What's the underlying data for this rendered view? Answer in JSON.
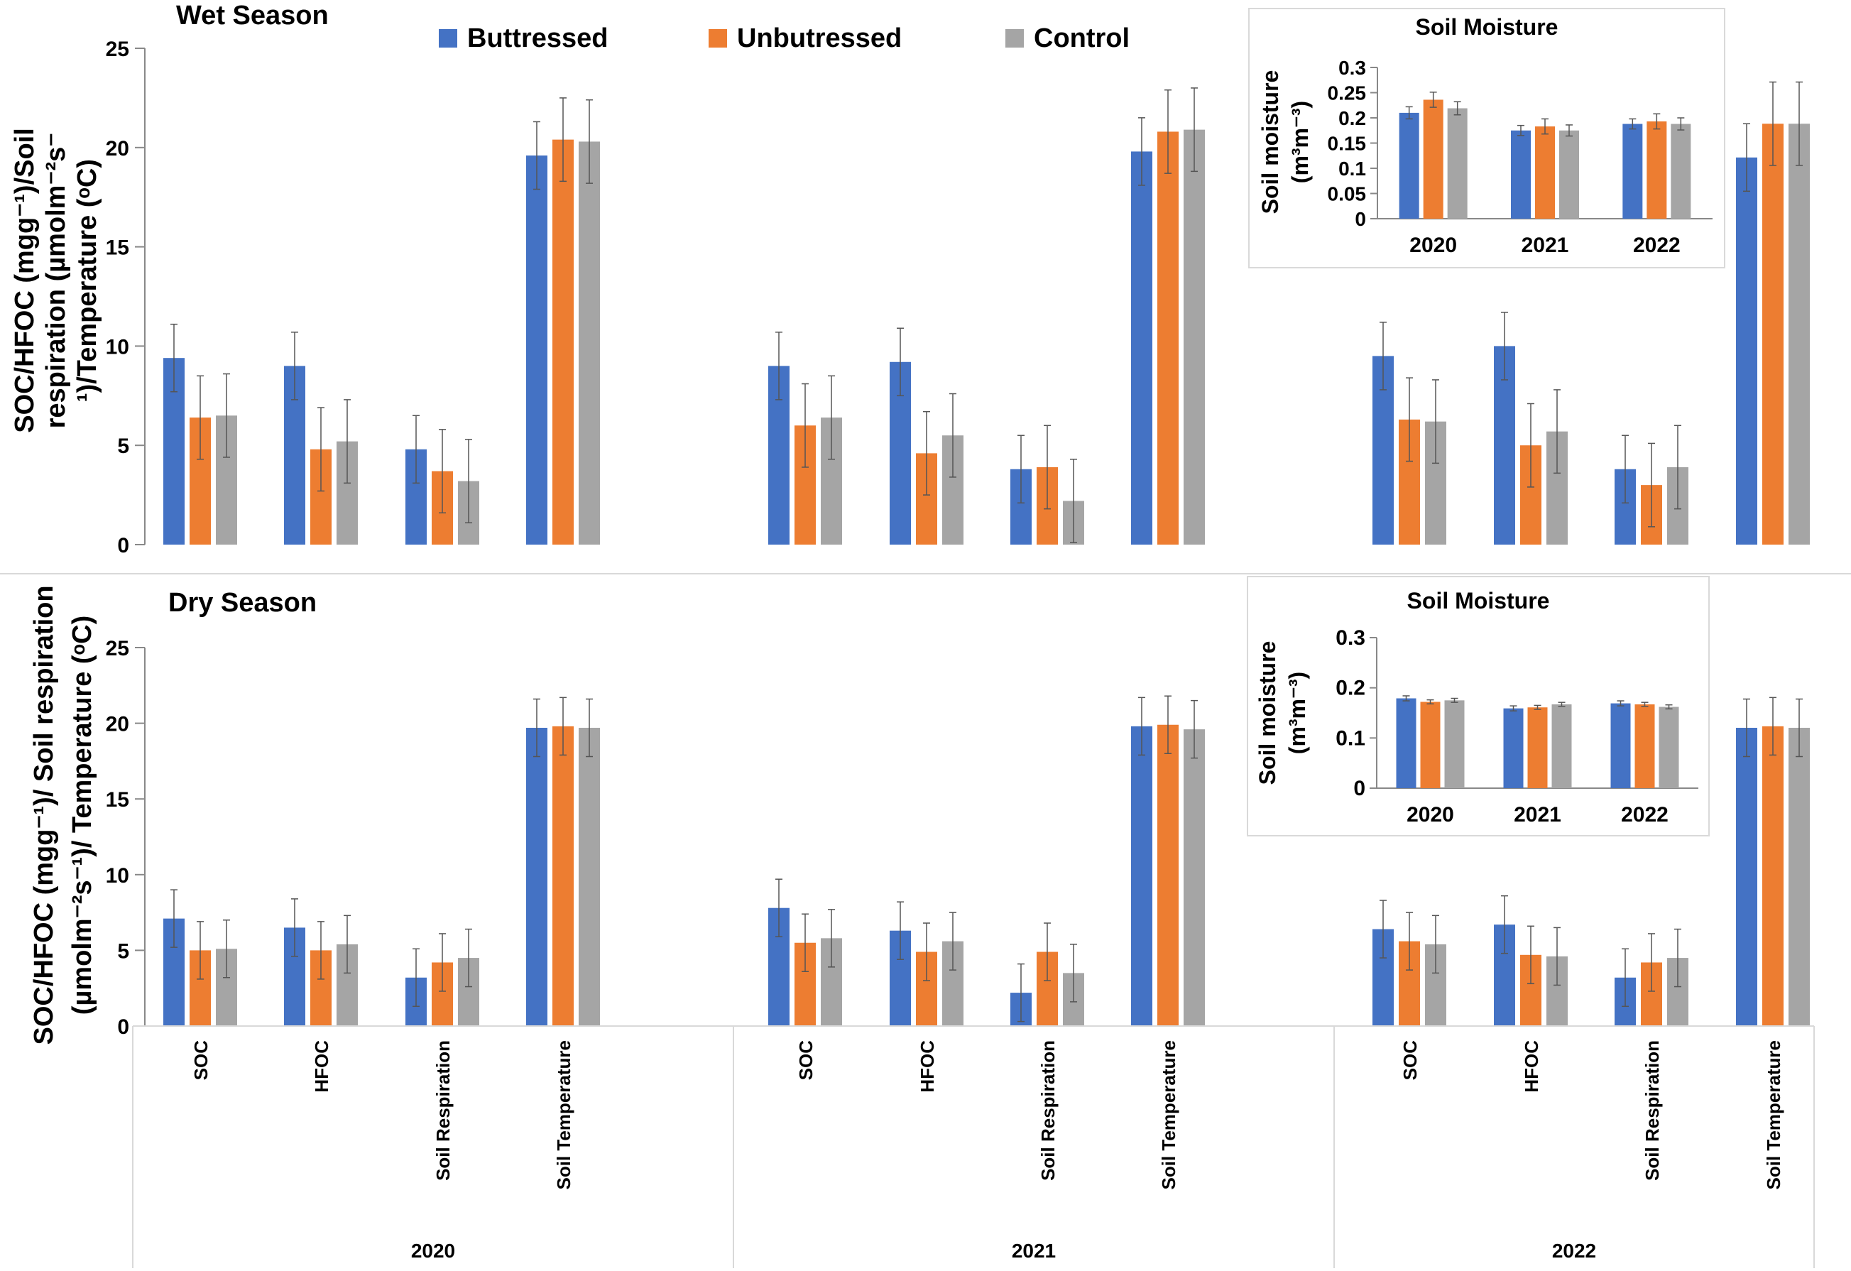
{
  "figure": {
    "legend": [
      {
        "name": "Buttressed",
        "color": "#4472C4"
      },
      {
        "name": "Unbutressed",
        "color": "#ED7D31"
      },
      {
        "name": "Control",
        "color": "#A5A5A5"
      }
    ],
    "group_years": [
      "2020",
      "2021",
      "2022"
    ],
    "categories": [
      "SOC",
      "HFOC",
      "Soil Respiration",
      "Soil Temperature"
    ]
  },
  "chart_data": [
    {
      "id": "wet",
      "type": "bar",
      "title": "Wet Season",
      "ylabel_lines": [
        "SOC/HFOC (mgg⁻¹)/Soil",
        "respiration (µmolm⁻²s⁻",
        "¹)/Temperature (ᵒC)"
      ],
      "ylim": [
        0,
        25
      ],
      "yticks": [
        0,
        5,
        10,
        15,
        20,
        25
      ],
      "groups": [
        "2020",
        "2021",
        "2022"
      ],
      "categories": [
        "SOC",
        "HFOC",
        "Soil Respiration",
        "Soil Temperature"
      ],
      "series": [
        {
          "name": "Buttressed",
          "values": [
            [
              9.4,
              9.0,
              4.8,
              19.6
            ],
            [
              9.0,
              9.2,
              3.8,
              19.8
            ],
            [
              9.5,
              10.0,
              3.8,
              19.5
            ]
          ],
          "errors": [
            [
              1.7,
              1.7,
              1.7,
              1.7
            ],
            [
              1.7,
              1.7,
              1.7,
              1.7
            ],
            [
              1.7,
              1.7,
              1.7,
              1.7
            ]
          ]
        },
        {
          "name": "Unbutressed",
          "values": [
            [
              6.4,
              4.8,
              3.7,
              20.4
            ],
            [
              6.0,
              4.6,
              3.9,
              20.8
            ],
            [
              6.3,
              5.0,
              3.0,
              21.2
            ]
          ],
          "errors": [
            [
              2.1,
              2.1,
              2.1,
              2.1
            ],
            [
              2.1,
              2.1,
              2.1,
              2.1
            ],
            [
              2.1,
              2.1,
              2.1,
              2.1
            ]
          ]
        },
        {
          "name": "Control",
          "values": [
            [
              6.5,
              5.2,
              3.2,
              20.3
            ],
            [
              6.4,
              5.5,
              2.2,
              20.9
            ],
            [
              6.2,
              5.7,
              3.9,
              21.2
            ]
          ],
          "errors": [
            [
              2.1,
              2.1,
              2.1,
              2.1
            ],
            [
              2.1,
              2.1,
              2.1,
              2.1
            ],
            [
              2.1,
              2.1,
              2.1,
              2.1
            ]
          ]
        }
      ],
      "inset": {
        "title": "Soil Moisture",
        "ylabel_lines": [
          "Soil moisture",
          "(m³m⁻³)"
        ],
        "ylim": [
          0,
          0.3
        ],
        "yticks": [
          0,
          0.05,
          0.1,
          0.15,
          0.2,
          0.25,
          0.3
        ],
        "ytick_labels": [
          "0",
          "0.05",
          "0.1",
          "0.15",
          "0.2",
          "0.25",
          "0.3"
        ],
        "categories": [
          "2020",
          "2021",
          "2022"
        ],
        "series": [
          {
            "name": "Buttressed",
            "values": [
              0.21,
              0.175,
              0.188
            ],
            "errors": [
              0.012,
              0.01,
              0.01
            ]
          },
          {
            "name": "Unbutressed",
            "values": [
              0.236,
              0.183,
              0.193
            ],
            "errors": [
              0.015,
              0.015,
              0.015
            ]
          },
          {
            "name": "Control",
            "values": [
              0.219,
              0.175,
              0.188
            ],
            "errors": [
              0.013,
              0.011,
              0.012
            ]
          }
        ]
      }
    },
    {
      "id": "dry",
      "type": "bar",
      "title": "Dry Season",
      "ylabel_lines": [
        "SOC/HFOC (mgg⁻¹)/ Soil respiration",
        "(µmolm⁻²s⁻¹)/ Temperature (ᵒC)"
      ],
      "ylim": [
        0,
        25
      ],
      "yticks": [
        0,
        5,
        10,
        15,
        20,
        25
      ],
      "groups": [
        "2020",
        "2021",
        "2022"
      ],
      "categories": [
        "SOC",
        "HFOC",
        "Soil Respiration",
        "Soil Temperature"
      ],
      "series": [
        {
          "name": "Buttressed",
          "values": [
            [
              7.1,
              6.5,
              3.2,
              19.7
            ],
            [
              7.8,
              6.3,
              2.2,
              19.8
            ],
            [
              6.4,
              6.7,
              3.2,
              19.7
            ]
          ],
          "errors": [
            [
              1.9,
              1.9,
              1.9,
              1.9
            ],
            [
              1.9,
              1.9,
              1.9,
              1.9
            ],
            [
              1.9,
              1.9,
              1.9,
              1.9
            ]
          ]
        },
        {
          "name": "Unbutressed",
          "values": [
            [
              5.0,
              5.0,
              4.2,
              19.8
            ],
            [
              5.5,
              4.9,
              4.9,
              19.9
            ],
            [
              5.6,
              4.7,
              4.2,
              19.8
            ]
          ],
          "errors": [
            [
              1.9,
              1.9,
              1.9,
              1.9
            ],
            [
              1.9,
              1.9,
              1.9,
              1.9
            ],
            [
              1.9,
              1.9,
              1.9,
              1.9
            ]
          ]
        },
        {
          "name": "Control",
          "values": [
            [
              5.1,
              5.4,
              4.5,
              19.7
            ],
            [
              5.8,
              5.6,
              3.5,
              19.6
            ],
            [
              5.4,
              4.6,
              4.5,
              19.7
            ]
          ],
          "errors": [
            [
              1.9,
              1.9,
              1.9,
              1.9
            ],
            [
              1.9,
              1.9,
              1.9,
              1.9
            ],
            [
              1.9,
              1.9,
              1.9,
              1.9
            ]
          ]
        }
      ],
      "inset": {
        "title": "Soil Moisture",
        "ylabel_lines": [
          "Soil moisture",
          "(m³m⁻³)"
        ],
        "ylim": [
          0,
          0.3
        ],
        "yticks": [
          0,
          0.1,
          0.2,
          0.3
        ],
        "ytick_labels": [
          "0",
          "0.1",
          "0.2",
          "0.3"
        ],
        "categories": [
          "2020",
          "2021",
          "2022"
        ],
        "series": [
          {
            "name": "Buttressed",
            "values": [
              0.179,
              0.159,
              0.169
            ],
            "errors": [
              0.005,
              0.005,
              0.005
            ]
          },
          {
            "name": "Unbutressed",
            "values": [
              0.172,
              0.161,
              0.167
            ],
            "errors": [
              0.004,
              0.004,
              0.004
            ]
          },
          {
            "name": "Control",
            "values": [
              0.175,
              0.167,
              0.162
            ],
            "errors": [
              0.004,
              0.004,
              0.004
            ]
          }
        ]
      }
    }
  ]
}
